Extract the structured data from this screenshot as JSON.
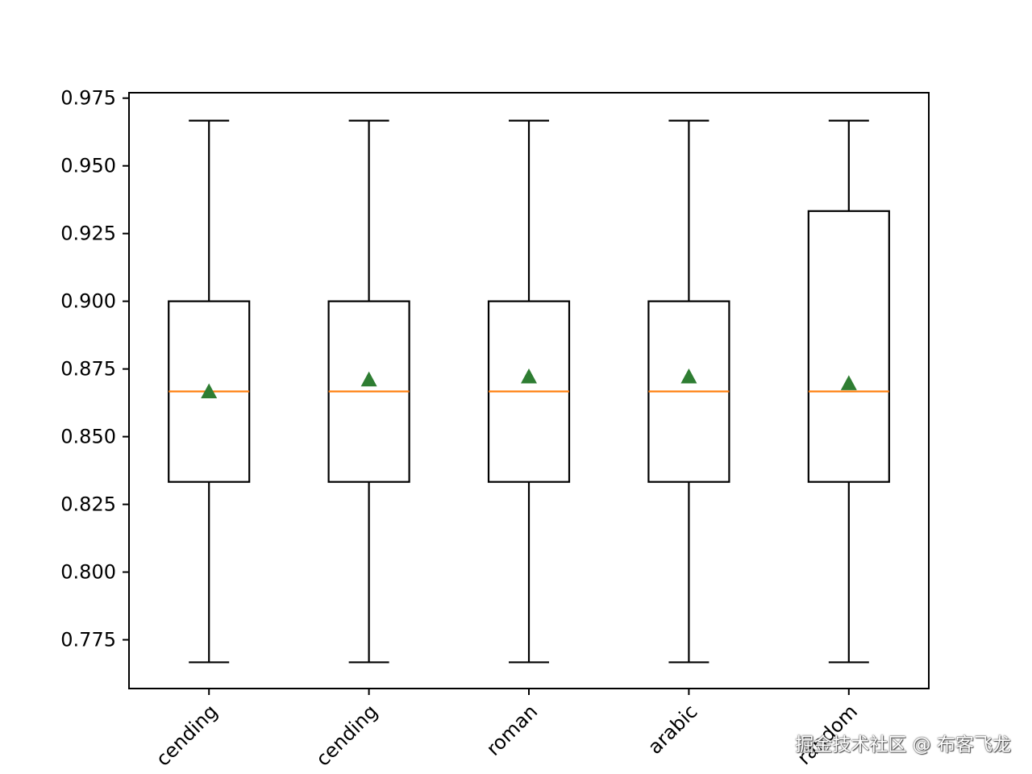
{
  "chart_data": {
    "type": "box",
    "categories": [
      "ascending",
      "descending",
      "roman",
      "arabic",
      "random"
    ],
    "category_labels_visible": [
      "cending",
      "cending",
      "roman",
      "arabic",
      "random"
    ],
    "boxes": [
      {
        "category": "ascending",
        "whisker_low": 0.7667,
        "q1": 0.8333,
        "median": 0.8667,
        "q3": 0.9,
        "whisker_high": 0.9667,
        "mean": 0.8667
      },
      {
        "category": "descending",
        "whisker_low": 0.7667,
        "q1": 0.8333,
        "median": 0.8667,
        "q3": 0.9,
        "whisker_high": 0.9667,
        "mean": 0.8711
      },
      {
        "category": "roman",
        "whisker_low": 0.7667,
        "q1": 0.8333,
        "median": 0.8667,
        "q3": 0.9,
        "whisker_high": 0.9667,
        "mean": 0.8722
      },
      {
        "category": "arabic",
        "whisker_low": 0.7667,
        "q1": 0.8333,
        "median": 0.8667,
        "q3": 0.9,
        "whisker_high": 0.9667,
        "mean": 0.8722
      },
      {
        "category": "random",
        "whisker_low": 0.7667,
        "q1": 0.8333,
        "median": 0.8667,
        "q3": 0.9333,
        "whisker_high": 0.9667,
        "mean": 0.8697
      }
    ],
    "ylim": [
      0.757,
      0.977
    ],
    "yticks": [
      0.775,
      0.8,
      0.825,
      0.85,
      0.875,
      0.9,
      0.925,
      0.95,
      0.975
    ],
    "ytick_labels": [
      "0.775",
      "0.800",
      "0.825",
      "0.850",
      "0.875",
      "0.900",
      "0.925",
      "0.950",
      "0.975"
    ],
    "xtick_rotation_deg": 45,
    "grid": false,
    "colors": {
      "box": "#000000",
      "median": "#ff7f0e",
      "mean_marker": "#2e7d32",
      "frame": "#000000"
    }
  },
  "watermark": "掘金技术社区 @ 布客飞龙"
}
